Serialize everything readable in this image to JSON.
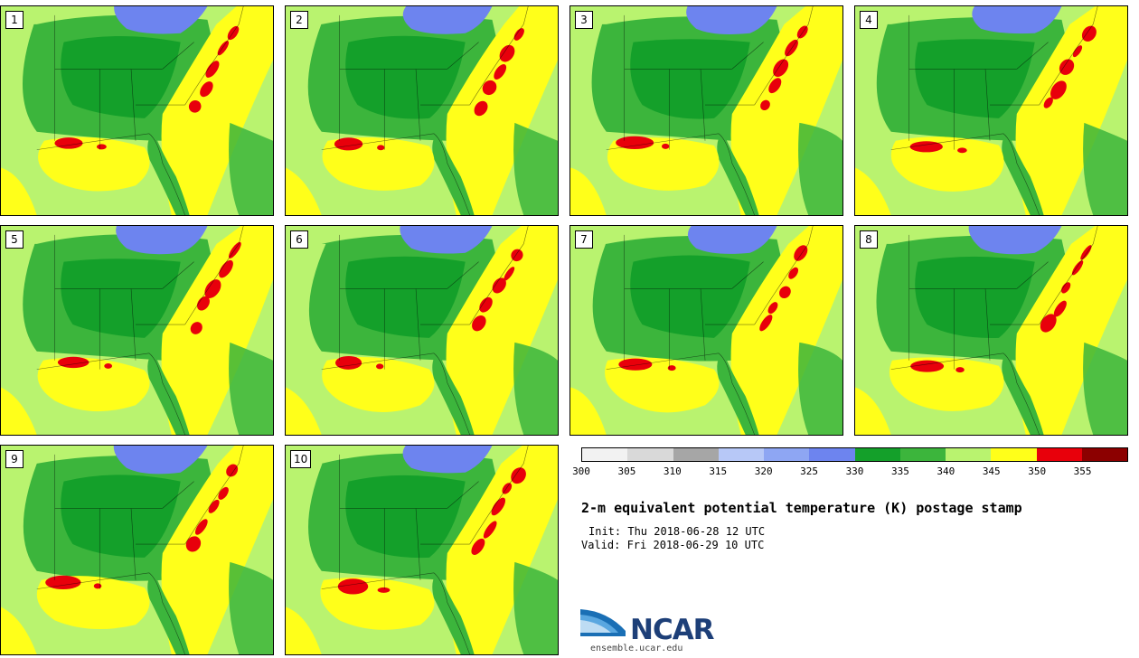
{
  "title": "2-m equivalent potential temperature (K) postage stamp",
  "init": "Init: Thu 2018-06-28 12 UTC",
  "valid": "Valid: Fri 2018-06-29 10 UTC",
  "logo": {
    "word": "NCAR",
    "url": "ensemble.ucar.edu"
  },
  "members": [
    "1",
    "2",
    "3",
    "4",
    "5",
    "6",
    "7",
    "8",
    "9",
    "10"
  ],
  "colorbar": {
    "ticks": [
      "300",
      "305",
      "310",
      "315",
      "320",
      "325",
      "330",
      "335",
      "340",
      "345",
      "350",
      "355"
    ],
    "colors": [
      "#f2f2f2",
      "#d9d9d9",
      "#a6a6a6",
      "#b7c8f7",
      "#8ea6f3",
      "#6d84ef",
      "#14a02a",
      "#3cb53c",
      "#b9f36f",
      "#ffff1a",
      "#e8000b",
      "#8c0000"
    ]
  },
  "map_colors": {
    "dark_green": "#14a02a",
    "mid_green": "#3cb53c",
    "light_green": "#b9f36f",
    "yellow": "#ffff1a",
    "red": "#e8000b",
    "blue": "#6d84ef"
  }
}
